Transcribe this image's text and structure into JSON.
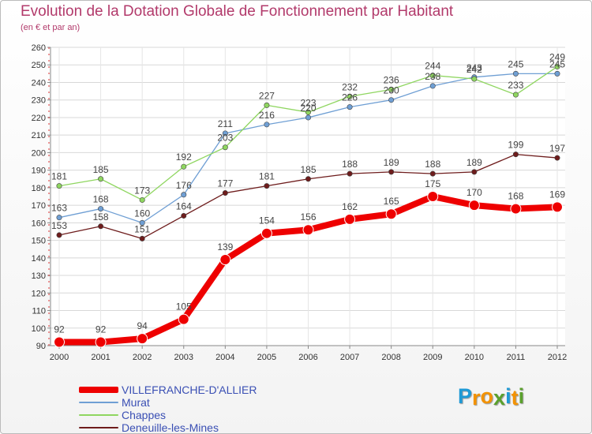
{
  "chart_data": {
    "type": "line",
    "title": "Evolution de la Dotation Globale de Fonctionnement par Habitant",
    "subtitle": "(en € et par an)",
    "xlabel": "",
    "ylabel": "",
    "ylim": [
      90,
      260
    ],
    "y_ticks": [
      90,
      100,
      110,
      120,
      130,
      140,
      150,
      160,
      170,
      180,
      190,
      200,
      210,
      220,
      230,
      240,
      250,
      260
    ],
    "categories": [
      "2000",
      "2001",
      "2002",
      "2003",
      "2004",
      "2005",
      "2006",
      "2007",
      "2008",
      "2009",
      "2010",
      "2011",
      "2012"
    ],
    "grid": true,
    "legend_position": "bottom-left",
    "series": [
      {
        "name": "Deneuille-les-Mines",
        "color": "#6e1c1c",
        "values": [
          153,
          158,
          151,
          164,
          177,
          181,
          185,
          188,
          189,
          188,
          189,
          199,
          197
        ]
      },
      {
        "name": "Murat",
        "color": "#6f9fd4",
        "values": [
          163,
          168,
          160,
          176,
          211,
          216,
          220,
          226,
          230,
          238,
          243,
          245,
          245
        ]
      },
      {
        "name": "Chappes",
        "color": "#8fd660",
        "values": [
          181,
          185,
          173,
          192,
          203,
          227,
          223,
          232,
          236,
          244,
          242,
          233,
          249
        ]
      },
      {
        "name": "VILLEFRANCHE-D'ALLIER",
        "color": "#ee0000",
        "values": [
          92,
          92,
          94,
          105,
          139,
          154,
          156,
          162,
          165,
          175,
          170,
          168,
          169
        ]
      }
    ],
    "legend_order": [
      "VILLEFRANCHE-D'ALLIER",
      "Murat",
      "Chappes",
      "Deneuille-les-Mines"
    ]
  },
  "branding": {
    "logo_letters": [
      "P",
      "r",
      "o",
      "x",
      "i",
      "t",
      "i"
    ],
    "logo_colors": [
      "#1f9ad6",
      "#f39200",
      "#f39200",
      "#5aa02c",
      "#1f9ad6",
      "#f39200",
      "#5aa02c"
    ]
  }
}
